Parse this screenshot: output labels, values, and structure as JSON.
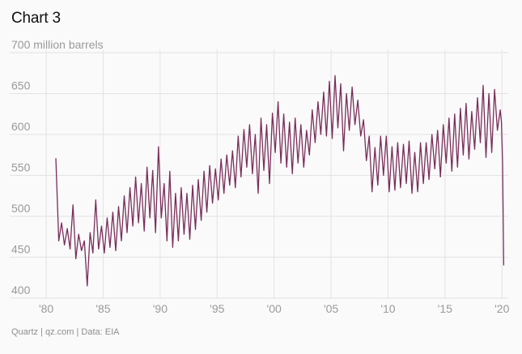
{
  "title": "Chart 3",
  "footer": "Quartz | qz.com | Data: EIA",
  "chart_data": {
    "type": "line",
    "title": "Chart 3",
    "ylabel": "million barrels",
    "ylim": [
      400,
      700
    ],
    "xlim": [
      1980.5,
      2020.7
    ],
    "y_ticks": [
      {
        "value": 700,
        "label": "700 million barrels"
      },
      {
        "value": 650,
        "label": "650"
      },
      {
        "value": 600,
        "label": "600"
      },
      {
        "value": 550,
        "label": "550"
      },
      {
        "value": 500,
        "label": "500"
      },
      {
        "value": 450,
        "label": "450"
      },
      {
        "value": 400,
        "label": "400"
      }
    ],
    "x_ticks": [
      {
        "value": 1980,
        "label": "'80"
      },
      {
        "value": 1985,
        "label": "'85"
      },
      {
        "value": 1990,
        "label": "'90"
      },
      {
        "value": 1995,
        "label": "'95"
      },
      {
        "value": 2000,
        "label": "'00"
      },
      {
        "value": 2005,
        "label": "'05"
      },
      {
        "value": 2010,
        "label": "'10"
      },
      {
        "value": 2015,
        "label": "'15"
      },
      {
        "value": 2020,
        "label": "'20"
      }
    ],
    "grid": true,
    "line_color": "#7a2d5a",
    "x": [
      1981.0,
      1981.25,
      1981.5,
      1981.75,
      1982.0,
      1982.25,
      1982.5,
      1982.75,
      1983.0,
      1983.25,
      1983.5,
      1983.75,
      1984.0,
      1984.25,
      1984.5,
      1984.75,
      1985.0,
      1985.25,
      1985.5,
      1985.75,
      1986.0,
      1986.25,
      1986.5,
      1986.75,
      1987.0,
      1987.25,
      1987.5,
      1987.75,
      1988.0,
      1988.25,
      1988.5,
      1988.75,
      1989.0,
      1989.25,
      1989.5,
      1989.75,
      1990.0,
      1990.25,
      1990.5,
      1990.75,
      1991.0,
      1991.25,
      1991.5,
      1991.75,
      1992.0,
      1992.25,
      1992.5,
      1992.75,
      1993.0,
      1993.25,
      1993.5,
      1993.75,
      1994.0,
      1994.25,
      1994.5,
      1994.75,
      1995.0,
      1995.25,
      1995.5,
      1995.75,
      1996.0,
      1996.25,
      1996.5,
      1996.75,
      1997.0,
      1997.25,
      1997.5,
      1997.75,
      1998.0,
      1998.25,
      1998.5,
      1998.75,
      1999.0,
      1999.25,
      1999.5,
      1999.75,
      2000.0,
      2000.25,
      2000.5,
      2000.75,
      2001.0,
      2001.25,
      2001.5,
      2001.75,
      2002.0,
      2002.25,
      2002.5,
      2002.75,
      2003.0,
      2003.25,
      2003.5,
      2003.75,
      2004.0,
      2004.25,
      2004.5,
      2004.75,
      2005.0,
      2005.25,
      2005.5,
      2005.75,
      2006.0,
      2006.25,
      2006.5,
      2006.75,
      2007.0,
      2007.25,
      2007.5,
      2007.75,
      2008.0,
      2008.25,
      2008.5,
      2008.75,
      2009.0,
      2009.25,
      2009.5,
      2009.75,
      2010.0,
      2010.25,
      2010.5,
      2010.75,
      2011.0,
      2011.25,
      2011.5,
      2011.75,
      2012.0,
      2012.25,
      2012.5,
      2012.75,
      2013.0,
      2013.25,
      2013.5,
      2013.75,
      2014.0,
      2014.25,
      2014.5,
      2014.75,
      2015.0,
      2015.25,
      2015.5,
      2015.75,
      2016.0,
      2016.25,
      2016.5,
      2016.75,
      2017.0,
      2017.25,
      2017.5,
      2017.75,
      2018.0,
      2018.25,
      2018.5,
      2018.75,
      2019.0,
      2019.25,
      2019.5,
      2019.75,
      2020.0,
      2020.1,
      2020.2,
      2020.3
    ],
    "values": [
      571,
      470,
      492,
      465,
      485,
      460,
      514,
      448,
      478,
      458,
      470,
      415,
      480,
      455,
      520,
      460,
      488,
      455,
      498,
      462,
      505,
      458,
      512,
      470,
      525,
      480,
      535,
      488,
      548,
      492,
      540,
      482,
      560,
      498,
      556,
      480,
      585,
      498,
      540,
      470,
      555,
      462,
      528,
      470,
      535,
      478,
      528,
      472,
      538,
      484,
      545,
      495,
      555,
      505,
      562,
      516,
      558,
      520,
      570,
      528,
      575,
      538,
      580,
      535,
      598,
      548,
      606,
      560,
      612,
      552,
      600,
      528,
      620,
      556,
      612,
      540,
      626,
      578,
      640,
      565,
      625,
      560,
      615,
      552,
      620,
      565,
      612,
      560,
      605,
      575,
      630,
      590,
      640,
      600,
      652,
      598,
      665,
      595,
      672,
      608,
      662,
      580,
      650,
      605,
      658,
      612,
      642,
      598,
      618,
      568,
      598,
      530,
      584,
      538,
      598,
      550,
      598,
      530,
      585,
      532,
      590,
      535,
      588,
      540,
      592,
      528,
      578,
      530,
      590,
      540,
      590,
      545,
      600,
      558,
      605,
      548,
      612,
      565,
      620,
      555,
      625,
      560,
      632,
      575,
      638,
      570,
      628,
      582,
      645,
      590,
      660,
      572,
      650,
      578,
      655,
      605,
      630,
      615,
      565,
      440
    ]
  }
}
